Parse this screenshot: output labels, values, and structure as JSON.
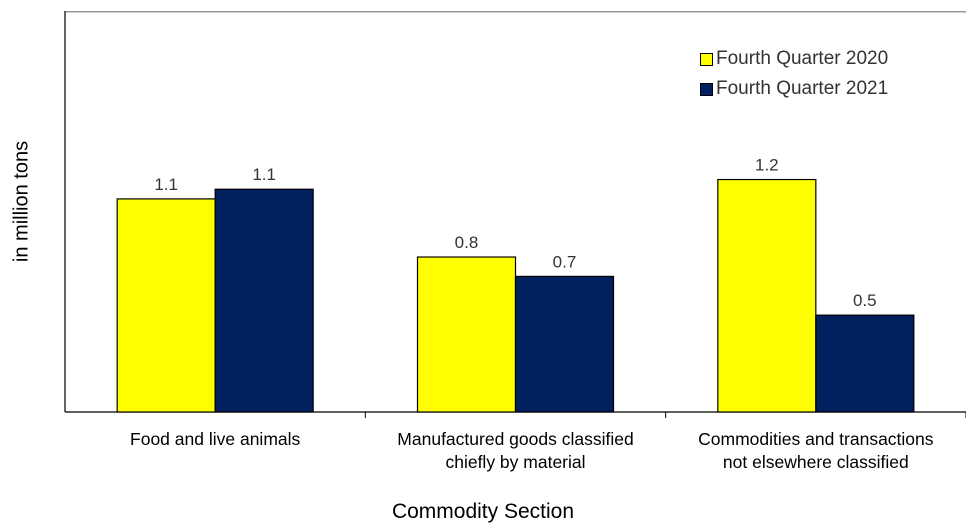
{
  "chart_data": {
    "type": "bar",
    "xlabel": "Commodity Section",
    "ylabel": "in million tons",
    "categories": [
      [
        "Food and live animals"
      ],
      [
        "Manufactured goods classified",
        "chiefly by material"
      ],
      [
        "Commodities and transactions",
        "not elsewhere classified"
      ]
    ],
    "series": [
      {
        "name": "Fourth Quarter 2020",
        "color": "#ffff00",
        "values": [
          1.1,
          0.8,
          1.2
        ],
        "labels": [
          "1.1",
          "0.8",
          "1.2"
        ]
      },
      {
        "name": "Fourth Quarter 2021",
        "color": "#002060",
        "values": [
          1.15,
          0.7,
          0.5
        ],
        "labels": [
          "1.1",
          "0.7",
          "0.5"
        ]
      }
    ],
    "ylim": [
      0,
      2.07
    ],
    "grid": false,
    "legend_position": "top-right"
  }
}
